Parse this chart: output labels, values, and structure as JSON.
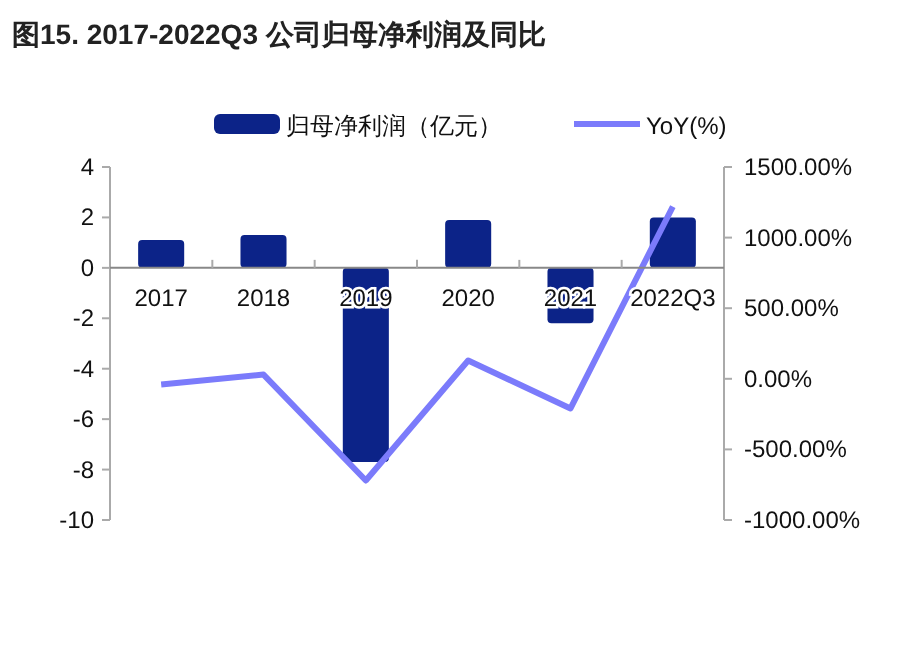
{
  "chart_data": {
    "type": "bar",
    "title": "图15. 2017-2022Q3 公司归母净利润及同比",
    "categories": [
      "2017",
      "2018",
      "2019",
      "2020",
      "2021",
      "2022Q3"
    ],
    "series": [
      {
        "name": "归母净利润（亿元）",
        "color": "#0c2388",
        "values": [
          1.1,
          1.3,
          -7.7,
          1.9,
          -2.2,
          2.0
        ]
      },
      {
        "name": "YoY(%)",
        "type": "line",
        "axis": "y2",
        "color": "#7b7bfb",
        "values": [
          -40,
          30,
          -720,
          130,
          -210,
          1220
        ]
      }
    ],
    "ylim": [
      -10,
      4
    ],
    "yticks": [
      -10,
      -8,
      -6,
      -4,
      -2,
      0,
      2,
      4
    ],
    "y2lim": [
      -1000,
      1500
    ],
    "y2ticks": [
      {
        "value": -1000,
        "label": "-1000.00%"
      },
      {
        "value": -500,
        "label": "-500.00%"
      },
      {
        "value": 0,
        "label": "0.00%"
      },
      {
        "value": 500,
        "label": "500.00%"
      },
      {
        "value": 1000,
        "label": "1000.00%"
      },
      {
        "value": 1500,
        "label": "1500.00%"
      }
    ],
    "legend": "top"
  }
}
